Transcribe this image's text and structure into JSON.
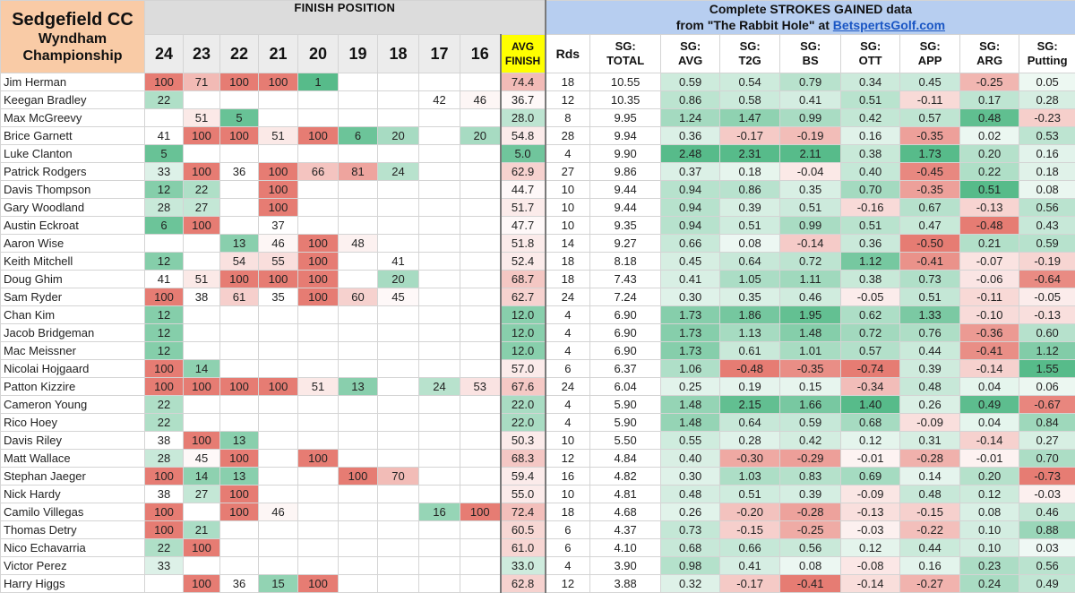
{
  "title": {
    "course": "Sedgefield CC",
    "line2": "Wyndham",
    "line3": "Championship"
  },
  "finish_header": "FINISH POSITION",
  "sg_header": {
    "line1": "Complete STROKES GAINED data",
    "line2_prefix": "from \"The Rabbit Hole\" at ",
    "line2_link": "BetspertsGolf.com"
  },
  "years": [
    "24",
    "23",
    "22",
    "21",
    "20",
    "19",
    "18",
    "17",
    "16"
  ],
  "avg_finish_header": {
    "line1": "AVG",
    "line2": "FINISH"
  },
  "rds_header": "Rds",
  "sg_columns": [
    {
      "l1": "SG:",
      "l2": "TOTAL"
    },
    {
      "l1": "SG:",
      "l2": "AVG"
    },
    {
      "l1": "SG:",
      "l2": "T2G"
    },
    {
      "l1": "SG:",
      "l2": "BS"
    },
    {
      "l1": "SG:",
      "l2": "OTT"
    },
    {
      "l1": "SG:",
      "l2": "APP"
    },
    {
      "l1": "SG:",
      "l2": "ARG"
    },
    {
      "l1": "SG:",
      "l2": "Putting"
    }
  ],
  "colors": {
    "finish_good": "#57bb8a",
    "finish_bad": "#e67c73",
    "sg_pos": "#57bb8a",
    "sg_neg": "#e67c73",
    "title_bg": "#f9cba6",
    "avg_header": "#ffff00",
    "sg_band": "#b7cef0"
  },
  "players": [
    {
      "name": "Jim Herman",
      "finishes": [
        "100",
        "71",
        "100",
        "100",
        "1",
        "",
        "",
        "",
        ""
      ],
      "avg": "74.4",
      "rds": "18",
      "sg": [
        "10.55",
        "0.59",
        "0.54",
        "0.79",
        "0.34",
        "0.45",
        "-0.25",
        "0.05"
      ]
    },
    {
      "name": "Keegan Bradley",
      "finishes": [
        "22",
        "",
        "",
        "",
        "",
        "",
        "",
        "42",
        "46"
      ],
      "avg": "36.7",
      "rds": "12",
      "sg": [
        "10.35",
        "0.86",
        "0.58",
        "0.41",
        "0.51",
        "-0.11",
        "0.17",
        "0.28"
      ]
    },
    {
      "name": "Max McGreevy",
      "finishes": [
        "",
        "51",
        "5",
        "",
        "",
        "",
        "",
        "",
        ""
      ],
      "avg": "28.0",
      "rds": "8",
      "sg": [
        "9.95",
        "1.24",
        "1.47",
        "0.99",
        "0.42",
        "0.57",
        "0.48",
        "-0.23"
      ]
    },
    {
      "name": "Brice Garnett",
      "finishes": [
        "41",
        "100",
        "100",
        "51",
        "100",
        "6",
        "20",
        "",
        "20"
      ],
      "avg": "54.8",
      "rds": "28",
      "sg": [
        "9.94",
        "0.36",
        "-0.17",
        "-0.19",
        "0.16",
        "-0.35",
        "0.02",
        "0.53"
      ]
    },
    {
      "name": "Luke Clanton",
      "finishes": [
        "5",
        "",
        "",
        "",
        "",
        "",
        "",
        "",
        ""
      ],
      "avg": "5.0",
      "rds": "4",
      "sg": [
        "9.90",
        "2.48",
        "2.31",
        "2.11",
        "0.38",
        "1.73",
        "0.20",
        "0.16"
      ]
    },
    {
      "name": "Patrick Rodgers",
      "finishes": [
        "33",
        "100",
        "36",
        "100",
        "66",
        "81",
        "24",
        "",
        ""
      ],
      "avg": "62.9",
      "rds": "27",
      "sg": [
        "9.86",
        "0.37",
        "0.18",
        "-0.04",
        "0.40",
        "-0.45",
        "0.22",
        "0.18"
      ]
    },
    {
      "name": "Davis Thompson",
      "finishes": [
        "12",
        "22",
        "",
        "100",
        "",
        "",
        "",
        "",
        ""
      ],
      "avg": "44.7",
      "rds": "10",
      "sg": [
        "9.44",
        "0.94",
        "0.86",
        "0.35",
        "0.70",
        "-0.35",
        "0.51",
        "0.08"
      ]
    },
    {
      "name": "Gary Woodland",
      "finishes": [
        "28",
        "27",
        "",
        "100",
        "",
        "",
        "",
        "",
        ""
      ],
      "avg": "51.7",
      "rds": "10",
      "sg": [
        "9.44",
        "0.94",
        "0.39",
        "0.51",
        "-0.16",
        "0.67",
        "-0.13",
        "0.56"
      ]
    },
    {
      "name": "Austin Eckroat",
      "finishes": [
        "6",
        "100",
        "",
        "37",
        "",
        "",
        "",
        "",
        ""
      ],
      "avg": "47.7",
      "rds": "10",
      "sg": [
        "9.35",
        "0.94",
        "0.51",
        "0.99",
        "0.51",
        "0.47",
        "-0.48",
        "0.43"
      ]
    },
    {
      "name": "Aaron Wise",
      "finishes": [
        "",
        "",
        "13",
        "46",
        "100",
        "48",
        "",
        "",
        ""
      ],
      "avg": "51.8",
      "rds": "14",
      "sg": [
        "9.27",
        "0.66",
        "0.08",
        "-0.14",
        "0.36",
        "-0.50",
        "0.21",
        "0.59"
      ]
    },
    {
      "name": "Keith Mitchell",
      "finishes": [
        "12",
        "",
        "54",
        "55",
        "100",
        "",
        "41",
        "",
        ""
      ],
      "avg": "52.4",
      "rds": "18",
      "sg": [
        "8.18",
        "0.45",
        "0.64",
        "0.72",
        "1.12",
        "-0.41",
        "-0.07",
        "-0.19"
      ]
    },
    {
      "name": "Doug Ghim",
      "finishes": [
        "41",
        "51",
        "100",
        "100",
        "100",
        "",
        "20",
        "",
        ""
      ],
      "avg": "68.7",
      "rds": "18",
      "sg": [
        "7.43",
        "0.41",
        "1.05",
        "1.11",
        "0.38",
        "0.73",
        "-0.06",
        "-0.64"
      ]
    },
    {
      "name": "Sam Ryder",
      "finishes": [
        "100",
        "38",
        "61",
        "35",
        "100",
        "60",
        "45",
        "",
        ""
      ],
      "avg": "62.7",
      "rds": "24",
      "sg": [
        "7.24",
        "0.30",
        "0.35",
        "0.46",
        "-0.05",
        "0.51",
        "-0.11",
        "-0.05"
      ]
    },
    {
      "name": "Chan Kim",
      "finishes": [
        "12",
        "",
        "",
        "",
        "",
        "",
        "",
        "",
        ""
      ],
      "avg": "12.0",
      "rds": "4",
      "sg": [
        "6.90",
        "1.73",
        "1.86",
        "1.95",
        "0.62",
        "1.33",
        "-0.10",
        "-0.13"
      ]
    },
    {
      "name": "Jacob Bridgeman",
      "finishes": [
        "12",
        "",
        "",
        "",
        "",
        "",
        "",
        "",
        ""
      ],
      "avg": "12.0",
      "rds": "4",
      "sg": [
        "6.90",
        "1.73",
        "1.13",
        "1.48",
        "0.72",
        "0.76",
        "-0.36",
        "0.60"
      ]
    },
    {
      "name": "Mac Meissner",
      "finishes": [
        "12",
        "",
        "",
        "",
        "",
        "",
        "",
        "",
        ""
      ],
      "avg": "12.0",
      "rds": "4",
      "sg": [
        "6.90",
        "1.73",
        "0.61",
        "1.01",
        "0.57",
        "0.44",
        "-0.41",
        "1.12"
      ]
    },
    {
      "name": "Nicolai Hojgaard",
      "finishes": [
        "100",
        "14",
        "",
        "",
        "",
        "",
        "",
        "",
        ""
      ],
      "avg": "57.0",
      "rds": "6",
      "sg": [
        "6.37",
        "1.06",
        "-0.48",
        "-0.35",
        "-0.74",
        "0.39",
        "-0.14",
        "1.55"
      ]
    },
    {
      "name": "Patton Kizzire",
      "finishes": [
        "100",
        "100",
        "100",
        "100",
        "51",
        "13",
        "",
        "24",
        "53"
      ],
      "avg": "67.6",
      "rds": "24",
      "sg": [
        "6.04",
        "0.25",
        "0.19",
        "0.15",
        "-0.34",
        "0.48",
        "0.04",
        "0.06"
      ]
    },
    {
      "name": "Cameron Young",
      "finishes": [
        "22",
        "",
        "",
        "",
        "",
        "",
        "",
        "",
        ""
      ],
      "avg": "22.0",
      "rds": "4",
      "sg": [
        "5.90",
        "1.48",
        "2.15",
        "1.66",
        "1.40",
        "0.26",
        "0.49",
        "-0.67"
      ]
    },
    {
      "name": "Rico Hoey",
      "finishes": [
        "22",
        "",
        "",
        "",
        "",
        "",
        "",
        "",
        ""
      ],
      "avg": "22.0",
      "rds": "4",
      "sg": [
        "5.90",
        "1.48",
        "0.64",
        "0.59",
        "0.68",
        "-0.09",
        "0.04",
        "0.84"
      ]
    },
    {
      "name": "Davis Riley",
      "finishes": [
        "38",
        "100",
        "13",
        "",
        "",
        "",
        "",
        "",
        ""
      ],
      "avg": "50.3",
      "rds": "10",
      "sg": [
        "5.50",
        "0.55",
        "0.28",
        "0.42",
        "0.12",
        "0.31",
        "-0.14",
        "0.27"
      ]
    },
    {
      "name": "Matt Wallace",
      "finishes": [
        "28",
        "45",
        "100",
        "",
        "100",
        "",
        "",
        "",
        ""
      ],
      "avg": "68.3",
      "rds": "12",
      "sg": [
        "4.84",
        "0.40",
        "-0.30",
        "-0.29",
        "-0.01",
        "-0.28",
        "-0.01",
        "0.70"
      ]
    },
    {
      "name": "Stephan Jaeger",
      "finishes": [
        "100",
        "14",
        "13",
        "",
        "",
        "100",
        "70",
        "",
        ""
      ],
      "avg": "59.4",
      "rds": "16",
      "sg": [
        "4.82",
        "0.30",
        "1.03",
        "0.83",
        "0.69",
        "0.14",
        "0.20",
        "-0.73"
      ]
    },
    {
      "name": "Nick Hardy",
      "finishes": [
        "38",
        "27",
        "100",
        "",
        "",
        "",
        "",
        "",
        ""
      ],
      "avg": "55.0",
      "rds": "10",
      "sg": [
        "4.81",
        "0.48",
        "0.51",
        "0.39",
        "-0.09",
        "0.48",
        "0.12",
        "-0.03"
      ]
    },
    {
      "name": "Camilo Villegas",
      "finishes": [
        "100",
        "",
        "100",
        "46",
        "",
        "",
        "",
        "16",
        "100"
      ],
      "avg": "72.4",
      "rds": "18",
      "sg": [
        "4.68",
        "0.26",
        "-0.20",
        "-0.28",
        "-0.13",
        "-0.15",
        "0.08",
        "0.46"
      ]
    },
    {
      "name": "Thomas Detry",
      "finishes": [
        "100",
        "21",
        "",
        "",
        "",
        "",
        "",
        "",
        ""
      ],
      "avg": "60.5",
      "rds": "6",
      "sg": [
        "4.37",
        "0.73",
        "-0.15",
        "-0.25",
        "-0.03",
        "-0.22",
        "0.10",
        "0.88"
      ]
    },
    {
      "name": "Nico Echavarria",
      "finishes": [
        "22",
        "100",
        "",
        "",
        "",
        "",
        "",
        "",
        ""
      ],
      "avg": "61.0",
      "rds": "6",
      "sg": [
        "4.10",
        "0.68",
        "0.66",
        "0.56",
        "0.12",
        "0.44",
        "0.10",
        "0.03"
      ]
    },
    {
      "name": "Victor Perez",
      "finishes": [
        "33",
        "",
        "",
        "",
        "",
        "",
        "",
        "",
        ""
      ],
      "avg": "33.0",
      "rds": "4",
      "sg": [
        "3.90",
        "0.98",
        "0.41",
        "0.08",
        "-0.08",
        "0.16",
        "0.23",
        "0.56"
      ]
    },
    {
      "name": "Harry Higgs",
      "finishes": [
        "",
        "100",
        "36",
        "15",
        "100",
        "",
        "",
        "",
        ""
      ],
      "avg": "62.8",
      "rds": "12",
      "sg": [
        "3.88",
        "0.32",
        "-0.17",
        "-0.41",
        "-0.14",
        "-0.27",
        "0.24",
        "0.49"
      ]
    }
  ]
}
